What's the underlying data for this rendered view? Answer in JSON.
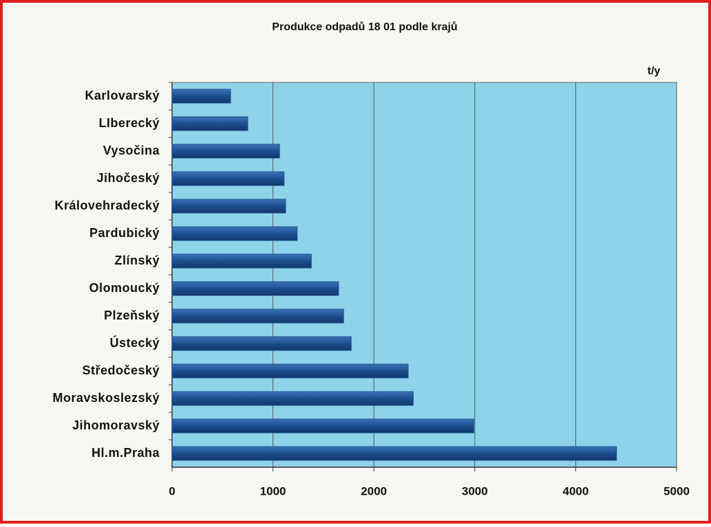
{
  "chart_data": {
    "type": "barh",
    "title": "Produkce odpadů 18 01 podle krajů",
    "xlabel": "t/y",
    "categories": [
      "Karlovarský",
      "LIberecký",
      "Vysočina",
      "Jihočeský",
      "Královehradecký",
      "Pardubický",
      "Zlínský",
      "Olomoucký",
      "Plzeňský",
      "Ústecký",
      "Středočeský",
      "Moravskoslezský",
      "Jihomoravský",
      "Hl.m.Praha"
    ],
    "values": [
      580,
      750,
      1065,
      1110,
      1125,
      1240,
      1380,
      1650,
      1700,
      1775,
      2340,
      2390,
      2990,
      4405
    ],
    "color": "#1c4f8f",
    "xlim": [
      0,
      5000
    ],
    "xticks": [
      0,
      1000,
      2000,
      3000,
      4000,
      5000
    ],
    "grid": true
  }
}
